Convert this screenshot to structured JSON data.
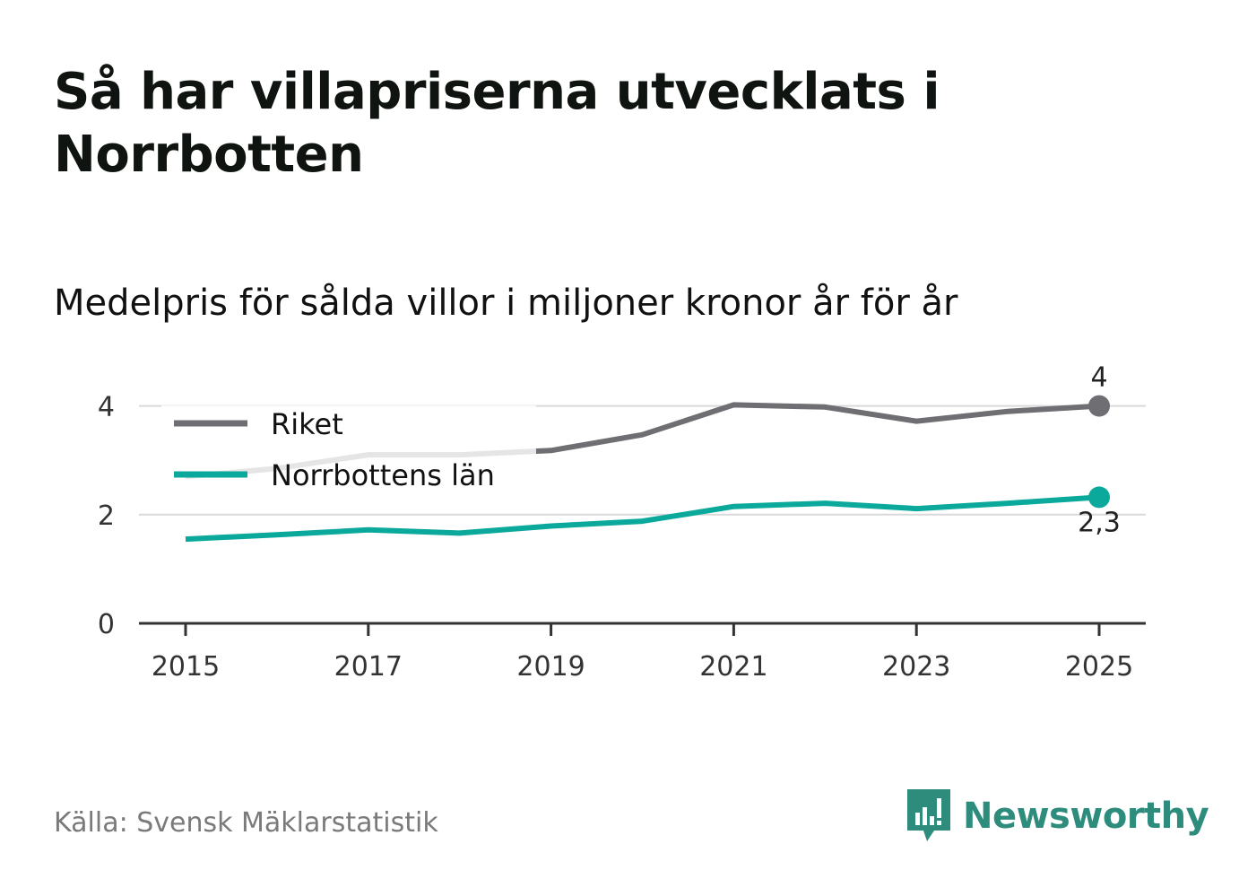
{
  "title": "Så har villapriserna utvecklats i Norrbotten",
  "subtitle": "Medelpris för sålda villor i miljoner kronor år för år",
  "source": "Källa: Svensk Mäklarstatistik",
  "brand": {
    "name": "Newsworthy",
    "icon": "newsworthy-logo-icon",
    "color": "#2d8c7c"
  },
  "chart_data": {
    "type": "line",
    "x": [
      2015,
      2016,
      2017,
      2018,
      2019,
      2020,
      2021,
      2022,
      2023,
      2024,
      2025
    ],
    "xticks": [
      "2015",
      "2017",
      "2019",
      "2021",
      "2023",
      "2025"
    ],
    "xtick_values": [
      2015,
      2017,
      2019,
      2021,
      2023,
      2025
    ],
    "yticks": [
      "0",
      "2",
      "4"
    ],
    "ytick_values": [
      0,
      2,
      4
    ],
    "ylim": [
      0,
      4.1
    ],
    "xlim": [
      2014.5,
      2025.5
    ],
    "legend_position": "top-left",
    "series": [
      {
        "name": "Riket",
        "color": "#6e6e73",
        "values": [
          2.7,
          2.85,
          3.1,
          3.1,
          3.18,
          3.47,
          4.02,
          3.98,
          3.72,
          3.9,
          4.0
        ],
        "end_label": "4"
      },
      {
        "name": "Norrbottens län",
        "color": "#0aa99b",
        "values": [
          1.55,
          1.63,
          1.72,
          1.66,
          1.79,
          1.88,
          2.15,
          2.21,
          2.11,
          2.21,
          2.32
        ],
        "end_label": "2,3"
      }
    ]
  }
}
